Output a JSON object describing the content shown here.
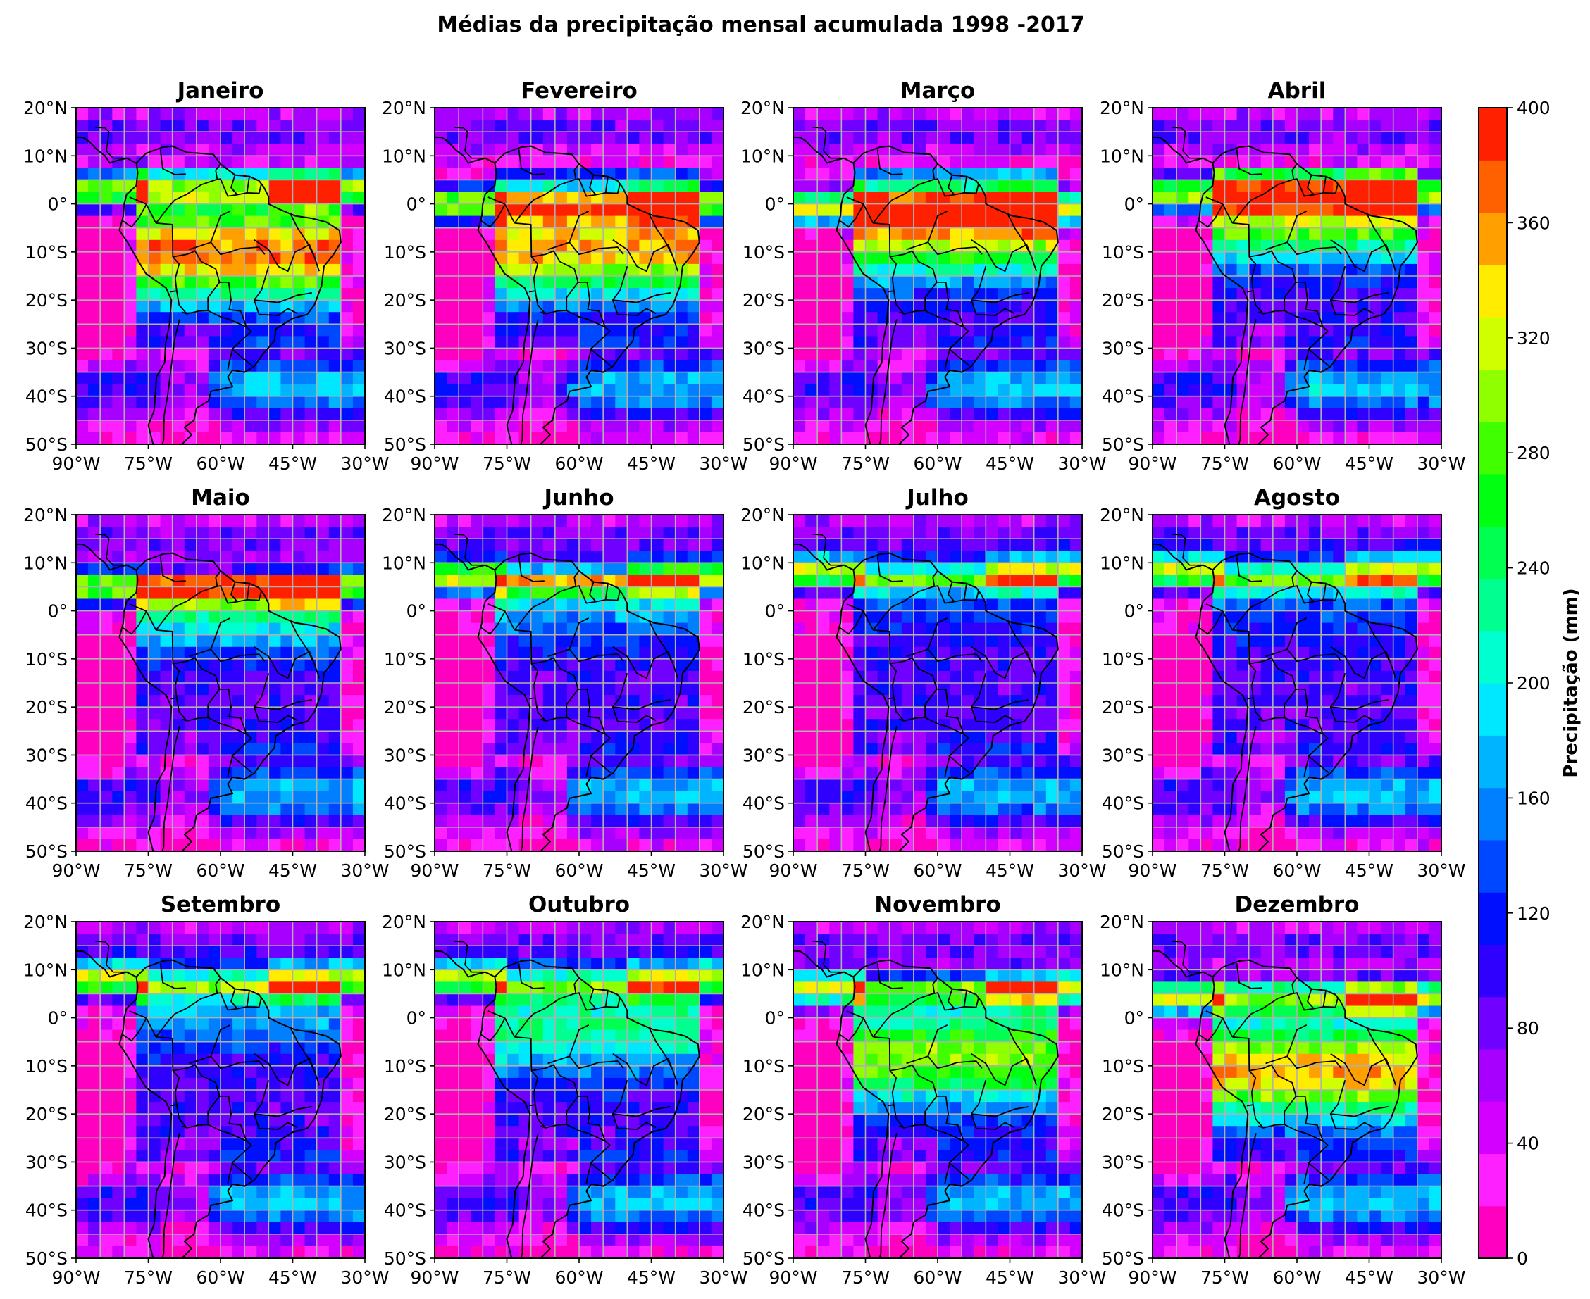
{
  "figure": {
    "title": "Médias da precipitação mensal acumulada 1998 -2017"
  },
  "panels": [
    {
      "title": "Janeiro"
    },
    {
      "title": "Fevereiro"
    },
    {
      "title": "Março"
    },
    {
      "title": "Abril"
    },
    {
      "title": "Maio"
    },
    {
      "title": "Junho"
    },
    {
      "title": "Julho"
    },
    {
      "title": "Agosto"
    },
    {
      "title": "Setembro"
    },
    {
      "title": "Outubro"
    },
    {
      "title": "Novembro"
    },
    {
      "title": "Dezembro"
    }
  ],
  "axes": {
    "lat_ticks": [
      "20°N",
      "10°N",
      "0°",
      "10°S",
      "20°S",
      "30°S",
      "40°S",
      "50°S"
    ],
    "lon_ticks": [
      "90°W",
      "75°W",
      "60°W",
      "45°W",
      "30°W"
    ],
    "lat_range": [
      -50,
      20
    ],
    "lon_range": [
      -90,
      -30
    ],
    "grid": true
  },
  "colorbar": {
    "label": "Precipitação (mm)",
    "range": [
      0,
      400
    ],
    "ticks": [
      "0",
      "40",
      "80",
      "120",
      "160",
      "200",
      "240",
      "280",
      "320",
      "360",
      "400"
    ],
    "colors": [
      "#ff00c0",
      "#ff20ff",
      "#d400ff",
      "#a800ff",
      "#7000ff",
      "#3000ff",
      "#0010ff",
      "#0048ff",
      "#0080ff",
      "#00b4ff",
      "#00e8ff",
      "#00ffd0",
      "#00ff90",
      "#00ff50",
      "#00ff10",
      "#40ff00",
      "#90ff00",
      "#d0ff00",
      "#ffec00",
      "#ffa000",
      "#ff6000",
      "#ff2000"
    ]
  }
}
